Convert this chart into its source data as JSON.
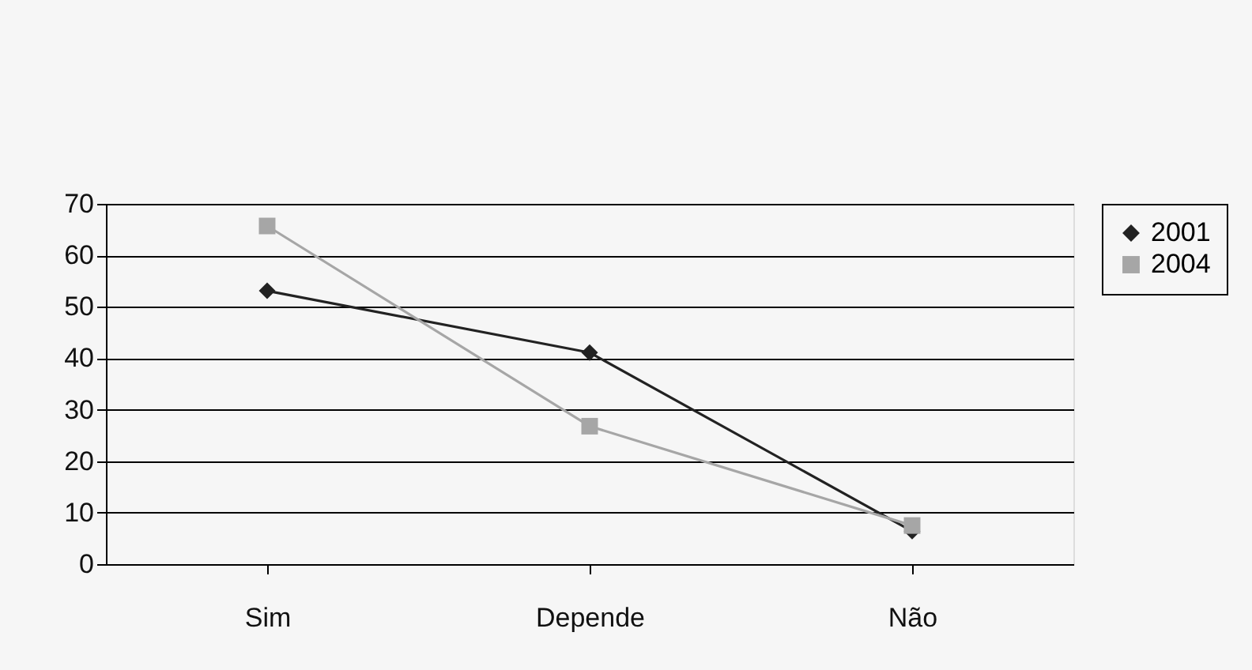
{
  "chart_data": {
    "type": "line",
    "categories": [
      "Sim",
      "Depende",
      "Não"
    ],
    "series": [
      {
        "name": "2001",
        "color": "#222222",
        "marker": "diamond",
        "values": [
          53.1,
          41.1,
          6.4
        ]
      },
      {
        "name": "2004",
        "color": "#a6a6a6",
        "marker": "square",
        "values": [
          65.7,
          26.8,
          7.5
        ]
      }
    ],
    "ylim": [
      0,
      70
    ],
    "yticks": [
      0,
      10,
      20,
      30,
      40,
      50,
      60,
      70
    ],
    "grid": "y",
    "legend": "right",
    "line_style": "solid"
  }
}
